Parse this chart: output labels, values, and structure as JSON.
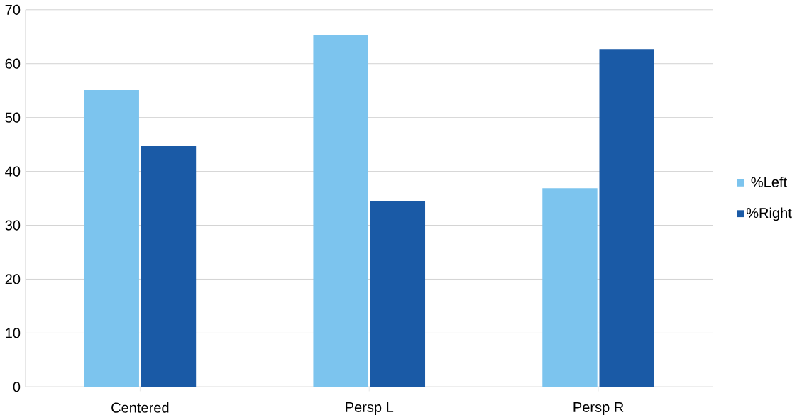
{
  "chart_data": {
    "type": "bar",
    "categories": [
      "Centered",
      "Persp L",
      "Persp R"
    ],
    "series": [
      {
        "name": "%Left",
        "color": "#7cc4ee",
        "values": [
          55.1,
          65.3,
          36.9
        ]
      },
      {
        "name": "%Right",
        "color": "#1a5aa6",
        "values": [
          44.7,
          34.4,
          62.7
        ]
      }
    ],
    "ylim": [
      0,
      70
    ],
    "yticks": [
      0,
      10,
      20,
      30,
      40,
      50,
      60,
      70
    ],
    "grid": "y",
    "legend": "right"
  }
}
